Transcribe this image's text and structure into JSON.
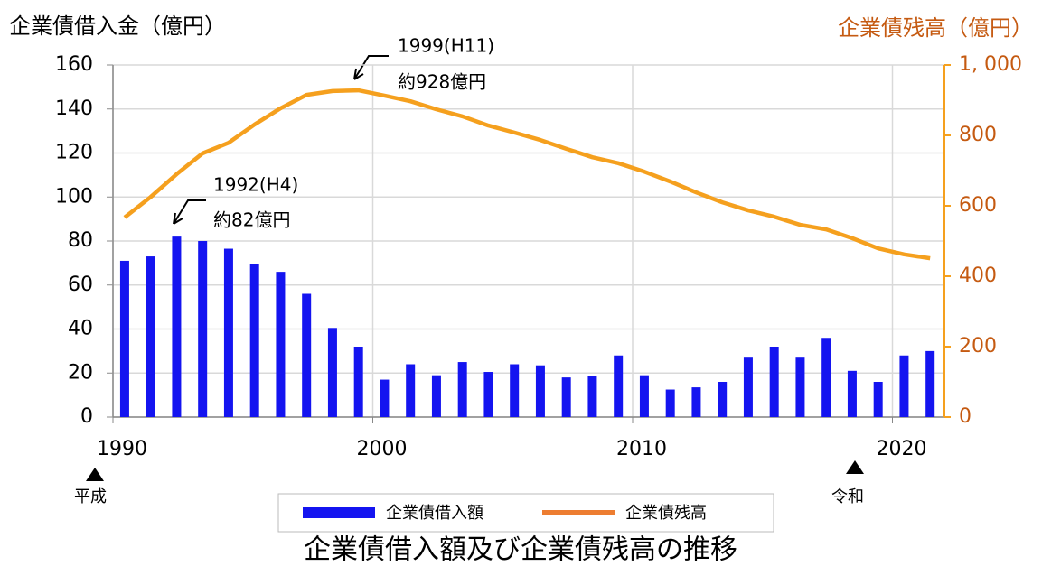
{
  "chart_data": {
    "type": "bar_line",
    "title": "企業債借入額及び企業債残高の推移",
    "y_label": "企業債借入金（億円）",
    "y2_label": "企業債残高（億円）",
    "x": [
      1990,
      1991,
      1992,
      1993,
      1994,
      1995,
      1996,
      1997,
      1998,
      1999,
      2000,
      2001,
      2002,
      2003,
      2004,
      2005,
      2006,
      2007,
      2008,
      2009,
      2010,
      2011,
      2012,
      2013,
      2014,
      2015,
      2016,
      2017,
      2018,
      2019,
      2020,
      2021
    ],
    "series": [
      {
        "name": "企業債借入額",
        "type": "bar",
        "color": "#1414f0",
        "values": [
          71,
          73,
          82,
          80,
          76.5,
          69.5,
          66,
          56,
          40.5,
          32,
          17,
          24,
          19,
          25,
          20.5,
          24,
          23.5,
          18,
          18.5,
          28,
          19,
          12.5,
          13.5,
          16,
          27,
          32,
          27,
          36,
          21,
          16,
          28,
          30
        ]
      },
      {
        "name": "企業債残高",
        "type": "line",
        "axis": "y2",
        "color": "#f5a01e",
        "values": [
          567,
          625,
          690,
          749,
          779,
          831,
          877,
          915,
          926,
          928,
          913,
          897,
          874,
          854,
          828,
          808,
          787,
          762,
          738,
          721,
          697,
          669,
          638,
          610,
          587,
          569,
          546,
          533,
          508,
          479,
          462,
          451
        ]
      }
    ],
    "xlim": [
      1990,
      2022
    ],
    "xticks": [
      1990,
      2000,
      2010,
      2020
    ],
    "ylim": [
      0,
      160
    ],
    "yticks": [
      0,
      20,
      40,
      60,
      80,
      100,
      120,
      140,
      160
    ],
    "y2lim": [
      0,
      1000
    ],
    "y2ticks": [
      0,
      200,
      400,
      600,
      800,
      {
        "value": 1000,
        "label": "1, 000"
      }
    ],
    "grid": true,
    "legend": "bottom",
    "annotations": [
      {
        "text": "1999(H11)"
      },
      {
        "text": "約928億円"
      },
      {
        "text": "1992(H4)"
      },
      {
        "text": "約82億円"
      },
      {
        "text": "平成"
      },
      {
        "text": "令和"
      }
    ]
  }
}
